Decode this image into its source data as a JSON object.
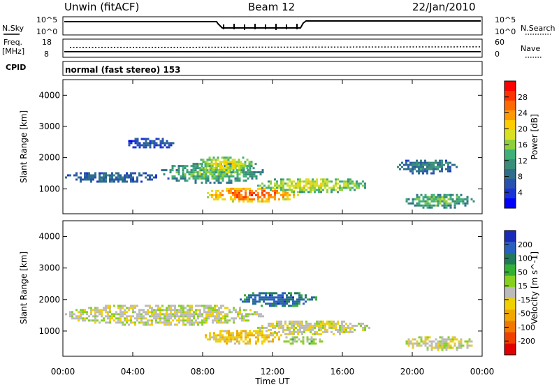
{
  "header": {
    "station": "Unwin (fitACF)",
    "beam": "Beam 12",
    "date": "22/Jan/2010"
  },
  "noise_panel": {
    "left_label": "N.Sky",
    "right_label": "N.Search",
    "ticks_left": [
      "10^5",
      "10^0"
    ],
    "ticks_right": [
      "10^5",
      "10^0"
    ]
  },
  "freq_panel": {
    "left_label_line1": "Freq.",
    "left_label_line2": "[MHz]",
    "left_ticks": [
      "18",
      "8"
    ],
    "right_label": "Nave",
    "right_ticks": [
      "60",
      "0"
    ]
  },
  "cpid_panel": {
    "label": "CPID",
    "text": "normal (fast stereo) 153"
  },
  "power_panel": {
    "ylabel": "Slant Range [km]",
    "cbar_label": "Power [dB]",
    "cbar_ticks": [
      "28",
      "24",
      "20",
      "16",
      "12",
      "8",
      "4"
    ],
    "cbar_colors": [
      "#ff0000",
      "#ff3300",
      "#ff6a00",
      "#ff9900",
      "#ffcc00",
      "#d8e020",
      "#8fcf3c",
      "#3fb07a",
      "#3a8d78",
      "#2e6e8c",
      "#2851b0",
      "#1a33d6",
      "#0000ff"
    ]
  },
  "velocity_panel": {
    "ylabel": "Slant Range [km]",
    "cbar_label": "Velocity [m s^-1]",
    "cbar_ticks": [
      "200",
      "100",
      "50",
      "15",
      "-15",
      "-50",
      "-100",
      "-200"
    ],
    "cbar_colors": [
      "#1a2ab8",
      "#2860c0",
      "#1f7a5a",
      "#33b033",
      "#88d020",
      "#bbbbbb",
      "#f0d000",
      "#f0a800",
      "#f07800",
      "#f04000",
      "#e00000"
    ]
  },
  "xaxis": {
    "label": "Time UT",
    "ticks": [
      "00:00",
      "04:00",
      "08:00",
      "12:00",
      "16:00",
      "20:00",
      "00:00"
    ]
  },
  "chart_data": [
    {
      "type": "heatmap",
      "title": "Power [dB]",
      "x": [
        "00:00",
        "04:00",
        "08:00",
        "12:00",
        "16:00",
        "20:00",
        "00:00"
      ],
      "ylabel": "Slant Range [km]",
      "xlabel": "Time UT",
      "ylim": [
        200,
        4500
      ],
      "zlim": [
        0,
        30
      ],
      "regions": [
        {
          "t_start": 0.0,
          "t_end": 5.5,
          "r_low": 1200,
          "r_high": 1600,
          "value": 8
        },
        {
          "t_start": 5.5,
          "t_end": 11.5,
          "r_low": 1200,
          "r_high": 1900,
          "value": 14
        },
        {
          "t_start": 7.5,
          "t_end": 11.0,
          "r_low": 1500,
          "r_high": 2100,
          "value": 18
        },
        {
          "t_start": 8.0,
          "t_end": 13.5,
          "r_low": 600,
          "r_high": 1100,
          "value": 26
        },
        {
          "t_start": 11.0,
          "t_end": 17.5,
          "r_low": 900,
          "r_high": 1400,
          "value": 18
        },
        {
          "t_start": 3.5,
          "t_end": 6.5,
          "r_low": 2300,
          "r_high": 2700,
          "value": 6
        },
        {
          "t_start": 19.0,
          "t_end": 22.5,
          "r_low": 1500,
          "r_high": 2000,
          "value": 10
        },
        {
          "t_start": 19.5,
          "t_end": 23.5,
          "r_low": 400,
          "r_high": 900,
          "value": 14
        }
      ]
    },
    {
      "type": "heatmap",
      "title": "Velocity [m s^-1]",
      "x": [
        "00:00",
        "04:00",
        "08:00",
        "12:00",
        "16:00",
        "20:00",
        "00:00"
      ],
      "ylabel": "Slant Range [km]",
      "xlabel": "Time UT",
      "ylim": [
        200,
        4500
      ],
      "zlim": [
        -200,
        200
      ],
      "regions": [
        {
          "t_start": 0.0,
          "t_end": 11.5,
          "r_low": 1200,
          "r_high": 1900,
          "value": 0
        },
        {
          "t_start": 8.0,
          "t_end": 12.5,
          "r_low": 600,
          "r_high": 1100,
          "value": -50
        },
        {
          "t_start": 11.0,
          "t_end": 17.5,
          "r_low": 900,
          "r_high": 1400,
          "value": -5
        },
        {
          "t_start": 12.5,
          "t_end": 15.0,
          "r_low": 600,
          "r_high": 900,
          "value": 30
        },
        {
          "t_start": 10.0,
          "t_end": 14.5,
          "r_low": 1800,
          "r_high": 2300,
          "value": 150
        },
        {
          "t_start": 19.5,
          "t_end": 23.5,
          "r_low": 400,
          "r_high": 900,
          "value": 0
        }
      ]
    }
  ]
}
